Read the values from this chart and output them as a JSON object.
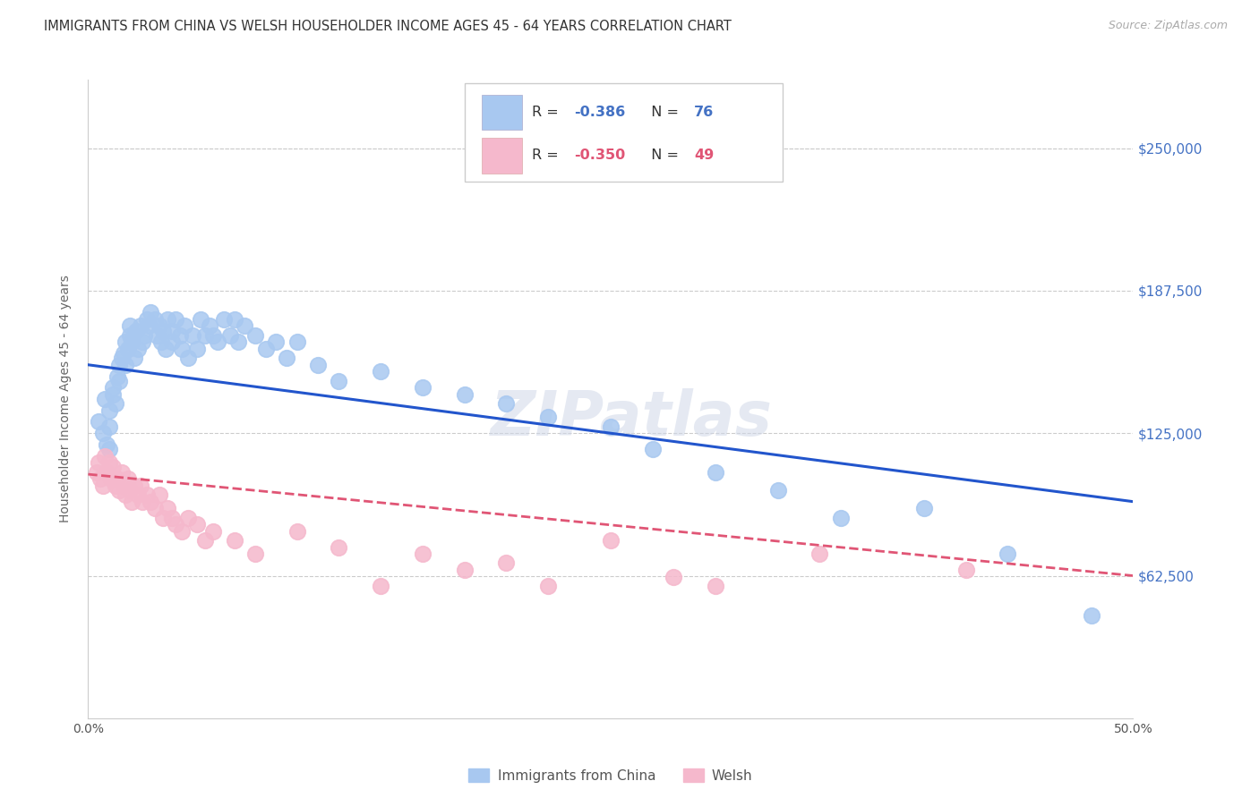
{
  "title": "IMMIGRANTS FROM CHINA VS WELSH HOUSEHOLDER INCOME AGES 45 - 64 YEARS CORRELATION CHART",
  "source": "Source: ZipAtlas.com",
  "ylabel": "Householder Income Ages 45 - 64 years",
  "xlim": [
    0.0,
    0.5
  ],
  "ylim": [
    0,
    280000
  ],
  "ytick_labels_right": [
    "$250,000",
    "$187,500",
    "$125,000",
    "$62,500"
  ],
  "ytick_values_right": [
    250000,
    187500,
    125000,
    62500
  ],
  "grid_color": "#cccccc",
  "background_color": "#ffffff",
  "watermark": "ZIPatlas",
  "r1_val": "-0.386",
  "n1_val": "76",
  "r2_val": "-0.350",
  "n2_val": "49",
  "series1_color": "#a8c8f0",
  "series2_color": "#f5b8cc",
  "trendline1_color": "#2255cc",
  "trendline2_color": "#e05575",
  "r_n_color": "#4472c4",
  "r_n_color2": "#e05575",
  "legend1_label": "Immigrants from China",
  "legend2_label": "Welsh",
  "china_x": [
    0.005,
    0.007,
    0.008,
    0.009,
    0.01,
    0.01,
    0.01,
    0.012,
    0.012,
    0.013,
    0.014,
    0.015,
    0.015,
    0.016,
    0.017,
    0.018,
    0.018,
    0.019,
    0.02,
    0.02,
    0.021,
    0.022,
    0.023,
    0.024,
    0.025,
    0.026,
    0.027,
    0.028,
    0.029,
    0.03,
    0.032,
    0.033,
    0.034,
    0.035,
    0.036,
    0.037,
    0.038,
    0.04,
    0.04,
    0.042,
    0.044,
    0.045,
    0.046,
    0.048,
    0.05,
    0.052,
    0.054,
    0.056,
    0.058,
    0.06,
    0.062,
    0.065,
    0.068,
    0.07,
    0.072,
    0.075,
    0.08,
    0.085,
    0.09,
    0.095,
    0.1,
    0.11,
    0.12,
    0.14,
    0.16,
    0.18,
    0.2,
    0.22,
    0.25,
    0.27,
    0.3,
    0.33,
    0.36,
    0.4,
    0.44,
    0.48
  ],
  "china_y": [
    130000,
    125000,
    140000,
    120000,
    135000,
    128000,
    118000,
    145000,
    142000,
    138000,
    150000,
    155000,
    148000,
    158000,
    160000,
    165000,
    155000,
    162000,
    168000,
    172000,
    165000,
    158000,
    170000,
    162000,
    172000,
    165000,
    168000,
    175000,
    172000,
    178000,
    175000,
    168000,
    172000,
    165000,
    170000,
    162000,
    175000,
    170000,
    165000,
    175000,
    168000,
    162000,
    172000,
    158000,
    168000,
    162000,
    175000,
    168000,
    172000,
    168000,
    165000,
    175000,
    168000,
    175000,
    165000,
    172000,
    168000,
    162000,
    165000,
    158000,
    165000,
    155000,
    148000,
    152000,
    145000,
    142000,
    138000,
    132000,
    128000,
    118000,
    108000,
    100000,
    88000,
    92000,
    72000,
    45000
  ],
  "welsh_x": [
    0.004,
    0.005,
    0.006,
    0.007,
    0.008,
    0.009,
    0.01,
    0.011,
    0.012,
    0.013,
    0.014,
    0.015,
    0.016,
    0.017,
    0.018,
    0.019,
    0.02,
    0.021,
    0.022,
    0.024,
    0.025,
    0.026,
    0.028,
    0.03,
    0.032,
    0.034,
    0.036,
    0.038,
    0.04,
    0.042,
    0.045,
    0.048,
    0.052,
    0.056,
    0.06,
    0.07,
    0.08,
    0.1,
    0.12,
    0.14,
    0.16,
    0.18,
    0.2,
    0.22,
    0.25,
    0.28,
    0.3,
    0.35,
    0.42
  ],
  "welsh_y": [
    108000,
    112000,
    105000,
    102000,
    115000,
    108000,
    112000,
    105000,
    110000,
    102000,
    105000,
    100000,
    108000,
    102000,
    98000,
    105000,
    100000,
    95000,
    102000,
    98000,
    102000,
    95000,
    98000,
    95000,
    92000,
    98000,
    88000,
    92000,
    88000,
    85000,
    82000,
    88000,
    85000,
    78000,
    82000,
    78000,
    72000,
    82000,
    75000,
    58000,
    72000,
    65000,
    68000,
    58000,
    78000,
    62000,
    58000,
    72000,
    65000
  ]
}
